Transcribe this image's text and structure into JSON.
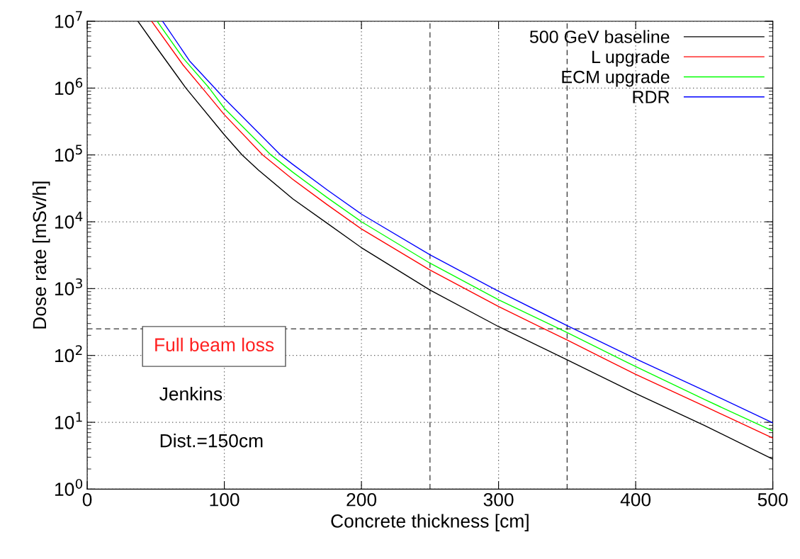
{
  "chart_data": {
    "type": "line",
    "xlabel": "Concrete thickness [cm]",
    "ylabel": "Dose rate [mSv/h]",
    "xlim": [
      0,
      500
    ],
    "ylim": [
      1,
      10000000
    ],
    "log": "y",
    "xticks": [
      0,
      100,
      200,
      300,
      400,
      500
    ],
    "yticks": [
      {
        "value": 1,
        "label": "10$^{0}$"
      },
      {
        "value": 10,
        "label": "10$^{1}$"
      },
      {
        "value": 100,
        "label": "10$^{2}$"
      },
      {
        "value": 1000,
        "label": "10$^{3}$"
      },
      {
        "value": 10000,
        "label": "10$^{4}$"
      },
      {
        "value": 100000,
        "label": "10$^{5}$"
      },
      {
        "value": 1000000,
        "label": "10$^{6}$"
      },
      {
        "value": 10000000,
        "label": "10$^{7}$"
      }
    ],
    "grid": true,
    "legend": "top right",
    "marker": "none",
    "line_style": "solid",
    "series": [
      {
        "name": "500 GeV baseline",
        "color": "#000000",
        "x": [
          37,
          50,
          72,
          100,
          113,
          125,
          150,
          175,
          200,
          250,
          300,
          350,
          400,
          450,
          500
        ],
        "values": [
          10000000,
          4200000,
          1000000,
          200000,
          100000,
          59000,
          22000,
          9500,
          4100,
          950,
          270,
          86,
          27,
          9,
          2.8
        ]
      },
      {
        "name": "L upgrade",
        "color": "#ff0000",
        "x": [
          47,
          70,
          84,
          100,
          128,
          150,
          175,
          200,
          250,
          300,
          350,
          400,
          450,
          500
        ],
        "values": [
          10000000,
          2200000,
          1000000,
          400000,
          100000,
          43000,
          18000,
          7800,
          1900,
          540,
          170,
          52,
          17.5,
          5.8
        ]
      },
      {
        "name": "ECM upgrade",
        "color": "#00ff00",
        "x": [
          51,
          70,
          89,
          100,
          134,
          150,
          175,
          200,
          250,
          300,
          350,
          400,
          450,
          500
        ],
        "values": [
          10000000,
          2800000,
          1000000,
          500000,
          100000,
          55000,
          23000,
          10000,
          2400,
          680,
          220,
          68,
          22,
          7.4
        ]
      },
      {
        "name": "RDR",
        "color": "#0000ff",
        "x": [
          55,
          75,
          93,
          100,
          141,
          150,
          175,
          200,
          250,
          300,
          350,
          400,
          450,
          500
        ],
        "values": [
          10000000,
          2500000,
          1000000,
          700000,
          100000,
          72000,
          30000,
          13000,
          3200,
          910,
          280,
          89,
          30,
          9.8
        ]
      }
    ],
    "ref_lines": [
      {
        "axis": "y",
        "value": 250,
        "line_style": "dashed",
        "color": "#000000"
      },
      {
        "axis": "x",
        "value": 250,
        "line_style": "dashed",
        "color": "#000000"
      },
      {
        "axis": "x",
        "value": 350,
        "line_style": "dashed",
        "color": "#000000"
      }
    ],
    "annotations": [
      "Full beam loss",
      "Jenkins",
      "Dist.=150cm"
    ]
  }
}
